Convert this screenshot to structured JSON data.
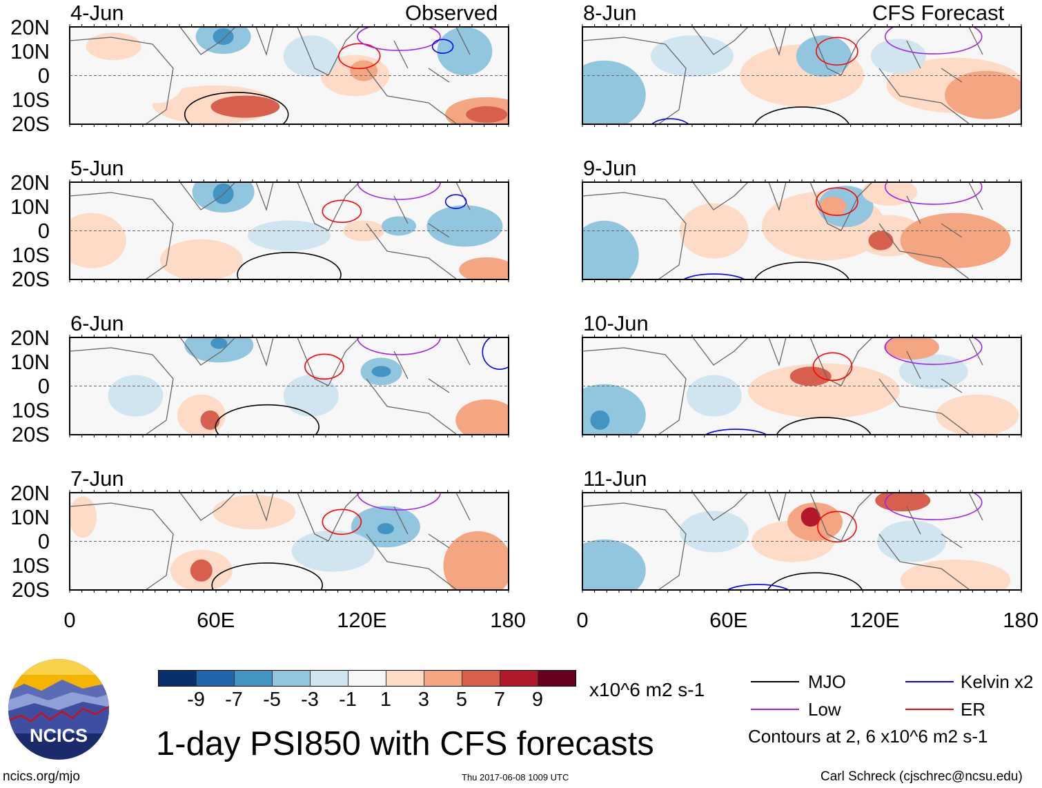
{
  "header": {
    "left_title": "Observed",
    "right_title": "CFS Forecast"
  },
  "observed_panels": [
    {
      "date": "4-Jun"
    },
    {
      "date": "5-Jun"
    },
    {
      "date": "6-Jun"
    },
    {
      "date": "7-Jun"
    }
  ],
  "forecast_panels": [
    {
      "date": "8-Jun"
    },
    {
      "date": "9-Jun"
    },
    {
      "date": "10-Jun"
    },
    {
      "date": "11-Jun"
    }
  ],
  "y_ticks": [
    "20N",
    "10N",
    "0",
    "10S",
    "20S"
  ],
  "x_ticks": [
    "0",
    "60E",
    "120E",
    "180"
  ],
  "x_range": [
    0,
    180
  ],
  "y_range": [
    -20,
    20
  ],
  "colorbar": {
    "colors": [
      "#08306b",
      "#2166ac",
      "#4393c3",
      "#92c5de",
      "#d1e5f0",
      "#f7f7f7",
      "#fddbc7",
      "#f4a582",
      "#d6604d",
      "#b2182b",
      "#67001f"
    ],
    "tick_labels": [
      "-9",
      "-7",
      "-5",
      "-3",
      "-1",
      "1",
      "3",
      "5",
      "7",
      "9"
    ],
    "units": "x10^6 m2 s-1"
  },
  "legend": {
    "items": [
      {
        "label": "MJO",
        "color": "#000000"
      },
      {
        "label": "Kelvin x2",
        "color": "#0000ff"
      },
      {
        "label": "Low",
        "color": "#a020f0"
      },
      {
        "label": "ER",
        "color": "#ff0000"
      }
    ],
    "contours_note": "Contours at 2, 6 x10^6 m2 s-1"
  },
  "logo": {
    "text": "NCICS"
  },
  "footer": {
    "title": "1-day PSI850 with CFS forecasts",
    "url": "ncics.org/mjo",
    "timestamp": "Thu 2017-06-08 1009 UTC",
    "credit": "Carl Schreck (cjschrec@ncsu.edu)"
  }
}
